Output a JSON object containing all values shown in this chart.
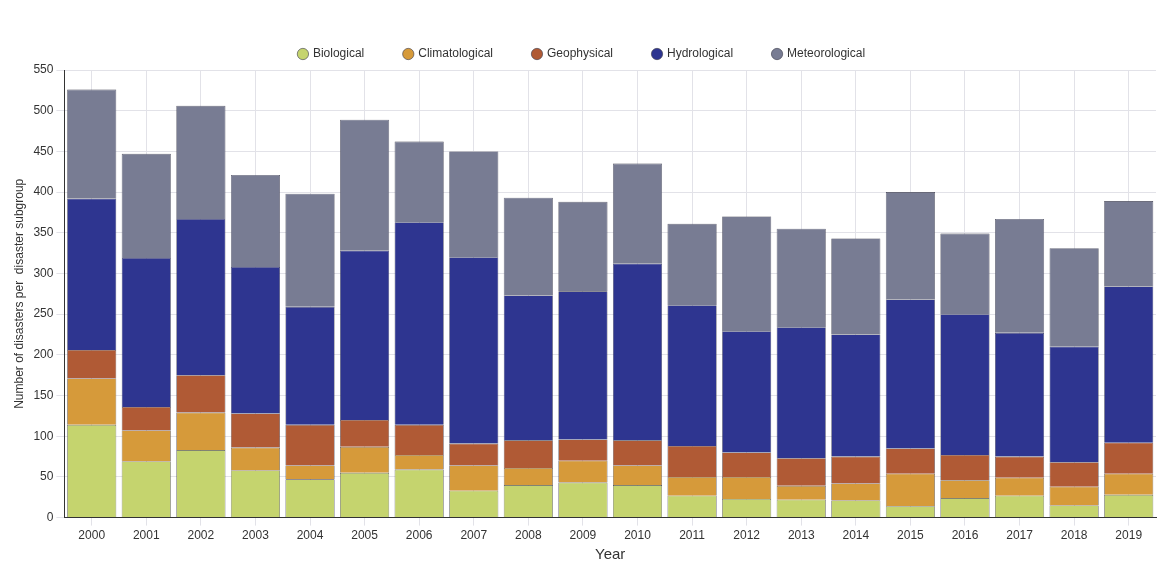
{
  "chart_data": {
    "type": "bar",
    "stacked": true,
    "xlabel": "Year",
    "ylabel": "Number of disasters per  disaster subgroup",
    "categories": [
      "2000",
      "2001",
      "2002",
      "2003",
      "2004",
      "2005",
      "2006",
      "2007",
      "2008",
      "2009",
      "2010",
      "2011",
      "2012",
      "2013",
      "2014",
      "2015",
      "2016",
      "2017",
      "2018",
      "2019"
    ],
    "series": [
      {
        "name": "Biological",
        "color": "#c5d46e",
        "values": [
          114,
          69,
          83,
          58,
          47,
          55,
          59,
          33,
          40,
          43,
          40,
          27,
          23,
          22,
          21,
          14,
          24,
          27,
          15,
          28
        ]
      },
      {
        "name": "Climatological",
        "color": "#d69a3a",
        "values": [
          57,
          38,
          46,
          28,
          17,
          32,
          18,
          31,
          21,
          27,
          24,
          23,
          27,
          17,
          21,
          40,
          22,
          22,
          23,
          26
        ]
      },
      {
        "name": "Geophysical",
        "color": "#b05a35",
        "values": [
          35,
          29,
          46,
          42,
          50,
          33,
          37,
          27,
          34,
          26,
          31,
          38,
          30,
          34,
          33,
          31,
          31,
          26,
          30,
          38
        ]
      },
      {
        "name": "Hydrological",
        "color": "#2e3590",
        "values": [
          186,
          183,
          192,
          180,
          145,
          208,
          249,
          229,
          178,
          182,
          217,
          173,
          149,
          161,
          150,
          183,
          173,
          152,
          142,
          192
        ]
      },
      {
        "name": "Meteorological",
        "color": "#787c93",
        "values": [
          134,
          128,
          139,
          113,
          139,
          161,
          99,
          130,
          120,
          110,
          123,
          100,
          141,
          121,
          118,
          132,
          99,
          140,
          121,
          105
        ]
      }
    ],
    "ylim": [
      0,
      550
    ],
    "yticks": [
      0,
      50,
      100,
      150,
      200,
      250,
      300,
      350,
      400,
      450,
      500,
      550
    ],
    "grid": true,
    "legend": "top"
  }
}
